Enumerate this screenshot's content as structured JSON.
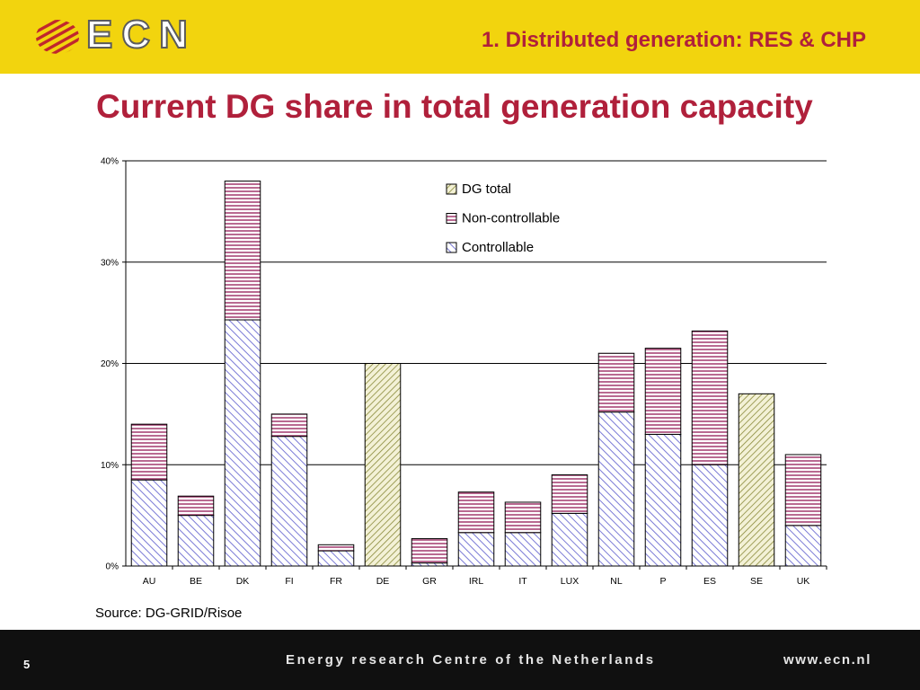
{
  "header": {
    "logo_text": "ECN",
    "section_title": "1. Distributed generation: RES & CHP"
  },
  "slide_title": "Current DG share in total generation capacity",
  "source": "Source: DG-GRID/Risoe",
  "footer": {
    "page_number": "5",
    "organization": "Energy research Centre of the Netherlands",
    "url": "www.ecn.nl"
  },
  "colors": {
    "header_bg": "#f2d40e",
    "title_red": "#b0203b",
    "footer_bg": "#101010",
    "controllable": "#7b7bd6",
    "non_controllable": "#9b2a62",
    "dg_total": "#8a8a3a"
  },
  "chart_data": {
    "type": "bar",
    "stacked": true,
    "categories": [
      "AU",
      "BE",
      "DK",
      "FI",
      "FR",
      "DE",
      "GR",
      "IRL",
      "IT",
      "LUX",
      "NL",
      "P",
      "ES",
      "SE",
      "UK"
    ],
    "series": [
      {
        "name": "Controllable",
        "values": [
          8.5,
          5.0,
          24.3,
          12.8,
          1.5,
          null,
          0.3,
          3.3,
          3.3,
          5.2,
          15.2,
          13.0,
          10.0,
          null,
          4.0
        ]
      },
      {
        "name": "Non-controllable",
        "values": [
          5.5,
          1.9,
          13.7,
          2.2,
          0.6,
          null,
          2.4,
          4.0,
          3.0,
          3.8,
          5.8,
          8.5,
          13.2,
          null,
          7.0
        ]
      },
      {
        "name": "DG total",
        "values": [
          null,
          null,
          null,
          null,
          null,
          20.0,
          null,
          null,
          null,
          null,
          null,
          null,
          null,
          17.0,
          null
        ]
      }
    ],
    "legend_order": [
      "DG total",
      "Non-controllable",
      "Controllable"
    ],
    "y_ticks": [
      "0%",
      "10%",
      "20%",
      "30%",
      "40%"
    ],
    "ylim": [
      0,
      40
    ],
    "y_unit": "%",
    "grid": true,
    "legend_position": "top-center"
  }
}
